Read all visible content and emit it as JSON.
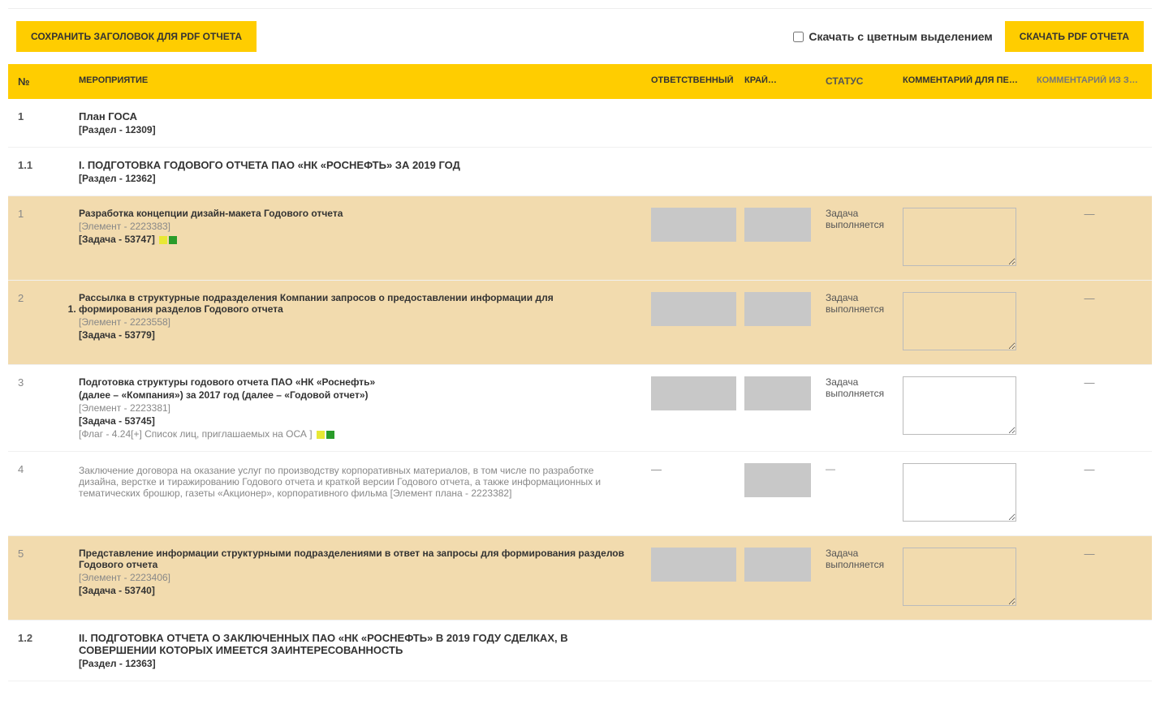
{
  "toolbar": {
    "save_header_btn": "СОХРАНИТЬ ЗАГОЛОВОК ДЛЯ PDF ОТЧЕТА",
    "download_color_label": "Скачать с цветным выделением",
    "download_pdf_btn": "СКАЧАТЬ PDF ОТЧЕТА"
  },
  "headers": {
    "num": "№",
    "event": "МЕРОПРИЯТИЕ",
    "responsible": "ОТВЕТСТВЕННЫЙ",
    "deadline": "КРАЙ…",
    "status": "СТАТУС",
    "comment1": "КОММЕНТАРИЙ ДЛЯ ПЕ…",
    "comment2": "КОММЕНТАРИЙ ИЗ ЗАД…"
  },
  "rows": [
    {
      "type": "section",
      "num": "1",
      "title": "План ГОСА",
      "subtitle": "[Раздел - 12309]"
    },
    {
      "type": "section",
      "num": "1.1",
      "title": "I. ПОДГОТОВКА ГОДОВОГО ОТЧЕТА ПАО «НК «РОСНЕФТЬ» ЗА 2019 ГОД",
      "subtitle": "[Раздел - 12362]"
    },
    {
      "type": "task",
      "beige": true,
      "num": "1",
      "title": "Разработка концепции дизайн-макета Годового отчета",
      "element": "[Элемент - 2223383]",
      "task": "[Задача - 53747]",
      "squares": [
        "yellow",
        "green"
      ],
      "resp_box": true,
      "deadline_box": true,
      "status": "Задача выполняется",
      "comment_field": true,
      "comment2": "—"
    },
    {
      "type": "task",
      "beige": true,
      "num": "2",
      "title": "Рассылка в структурные подразделения Компании запросов о предоставлении информации для <ol><li>формирования разделов Годового отчета</li></ol>",
      "element": "[Элемент - 2223558]",
      "task": "[Задача - 53779]",
      "resp_box": true,
      "deadline_box": true,
      "status": "Задача выполняется",
      "comment_field": true,
      "comment2": "—"
    },
    {
      "type": "task",
      "beige": false,
      "num": "3",
      "title": "Подготовка структуры годового отчета ПАО «НК «Роснефть»<br>",
      "title2": "(далее – «Компания») за 2017 год (далее – «Годовой отчет»)",
      "element": "[Элемент - 2223381]",
      "task": "[Задача - 53745]",
      "flag": "[Флаг - 4.24[+] Список лиц, приглашаемых на ОСА ]",
      "squares": [
        "yellow",
        "green"
      ],
      "resp_box": true,
      "deadline_box": true,
      "status": "Задача выполняется",
      "comment_field": true,
      "comment2": "—"
    },
    {
      "type": "task",
      "beige": false,
      "num": "4",
      "title": "Заключение договора на оказание услуг по производству корпоративных материалов, в том числе по разработке дизайна, верстке и тиражированию Годового отчета и краткой версии Годового отчета, а также информационных и тематических брошюр, газеты «Акционер», корпоративного фильма [Элемент плана - 2223382]",
      "no_bold_title": true,
      "resp_dash": true,
      "deadline_box": true,
      "status": "—",
      "comment_field": true,
      "comment2": "—"
    },
    {
      "type": "task",
      "beige": true,
      "num": "5",
      "title": "Представление информации структурными подразделениями в ответ на запросы для формирования разделов Годового отчета",
      "element": "[Элемент - 2223406]",
      "task": "[Задача - 53740]",
      "resp_box": true,
      "deadline_box": true,
      "status": "Задача выполняется",
      "comment_field": true,
      "comment2": "—"
    },
    {
      "type": "section",
      "num": "1.2",
      "title": "II. ПОДГОТОВКА ОТЧЕТА О ЗАКЛЮЧЕННЫХ ПАО «НК «РОСНЕФТЬ» В 2019 ГОДУ СДЕЛКАХ, В СОВЕРШЕНИИ КОТОРЫХ ИМЕЕТСЯ ЗАИНТЕРЕСОВАННОСТЬ",
      "subtitle": "[Раздел - 12363]"
    }
  ],
  "colors": {
    "accent": "#ffcd00",
    "beige": "#f2dbae",
    "graybox": "#c8c8c8"
  }
}
